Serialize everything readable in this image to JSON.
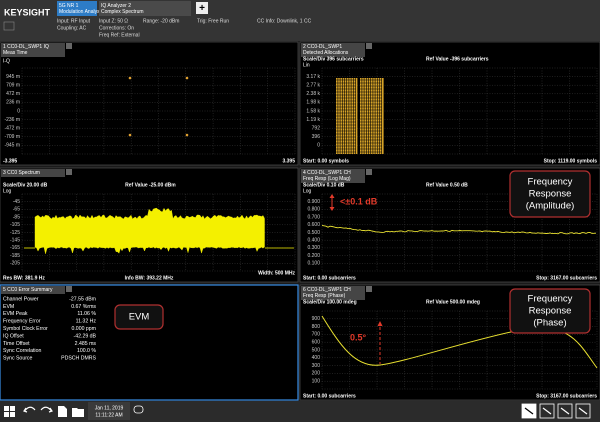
{
  "header": {
    "logo": "KEYSIGHT",
    "tabs": [
      {
        "number": "5G NR 1",
        "name": "Modulation Analysis"
      },
      {
        "number": "IQ Analyzer 2",
        "name": "Complex Spectrum"
      }
    ],
    "add_tab": "+",
    "info": [
      [
        "Input: RF Input",
        "Coupling: AC"
      ],
      [
        "Input Z: 50 Ω",
        "Corrections: On",
        "Freq Ref: External"
      ],
      [
        "Range: -20 dBm"
      ],
      [
        "Trig: Free Run"
      ],
      [
        "CC Info: Downlink, 1 CC"
      ]
    ]
  },
  "panels": [
    {
      "title": [
        "1 CC0-DL_SWP1 IQ",
        "Meas Time"
      ],
      "mode": "I-Q",
      "yticks": [
        "945 m",
        "709 m",
        "472 m",
        "236 m",
        "0",
        "-236 m",
        "-472 m",
        "-709 m",
        "-945 m"
      ],
      "footer_left": "-3.395",
      "footer_right": "3.395"
    },
    {
      "title": [
        "2 CC0-DL_SWP1",
        "Detected Allocations"
      ],
      "scale": "Scale/Div 396 subcarriers",
      "ref": "Ref Value -396 subcarriers",
      "mode": "Lin",
      "yticks": [
        "3.17 k",
        "2.77 k",
        "2.38 k",
        "1.98 k",
        "1.58 k",
        "1.19 k",
        "792",
        "396",
        "0"
      ],
      "footer_left": "Start: 0.00 symbols",
      "footer_right": "Stop: 1119.00 symbols"
    },
    {
      "title": [
        "3 CC0 Spectrum"
      ],
      "scale": "Scale/Div 20.00 dB",
      "ref": "Ref Value -25.00 dBm",
      "mode": "Log",
      "yticks": [
        "-45",
        "-65",
        "-85",
        "-105",
        "-125",
        "-145",
        "-165",
        "-185",
        "-205"
      ],
      "footer_left": "Res BW: 381.9 Hz",
      "footer_center": "Info BW: 393.22 MHz",
      "footer_right": "Width: 500 MHz"
    },
    {
      "title": [
        "4 CC0-DL_SWP1 CH",
        "Freq Resp (Log Mag)"
      ],
      "scale": "Scale/Div 0.10 dB",
      "ref": "Ref Value 0.50 dB",
      "mode": "Log",
      "yticks": [
        "0.900",
        "0.800",
        "0.700",
        "0.600",
        "0.500",
        "0.400",
        "0.300",
        "0.200",
        "0.100"
      ],
      "footer_left": "Start: 0.00 subcarriers",
      "footer_right": "Stop: 3167.00 subcarriers",
      "callout": [
        "Frequency",
        "Response",
        "(Amplitude)"
      ],
      "marker": "<±0.1 dB"
    },
    {
      "title": [
        "5 CC0 Error Summary"
      ],
      "rows": [
        [
          "Channel Power",
          "-27.55 dBm"
        ],
        [
          "EVM",
          "0.67 %rms"
        ],
        [
          "EVM Peak",
          "11.06 %"
        ],
        [
          "Frequency Error",
          "11.32 Hz"
        ],
        [
          "Symbol Clock Error",
          "0.000 ppm"
        ],
        [
          "IQ Offset",
          "-42.29 dB"
        ],
        [
          "Time Offset",
          "2.485 ms"
        ],
        [
          "Sync Correlation",
          "100.0 %"
        ],
        [
          "Sync Source",
          "PDSCH DMRS"
        ]
      ],
      "callout": [
        "EVM"
      ]
    },
    {
      "title": [
        "6 CC0-DL_SWP1 CH",
        "Freq Resp (Phase)"
      ],
      "scale": "Scale/Div 100.00 mdeg",
      "ref": "Ref Value 500.00 mdeg",
      "yticks": [
        "900",
        "800",
        "700",
        "600",
        "500",
        "400",
        "300",
        "200",
        "100"
      ],
      "footer_left": "Start: 0.00 subcarriers",
      "footer_right": "Stop: 3167.00 subcarriers",
      "callout": [
        "Frequency",
        "Response",
        "(Phase)"
      ],
      "marker": "0.5°"
    }
  ],
  "taskbar": {
    "date": "Jan 11, 2019",
    "time": "11:11:22 AM"
  }
}
